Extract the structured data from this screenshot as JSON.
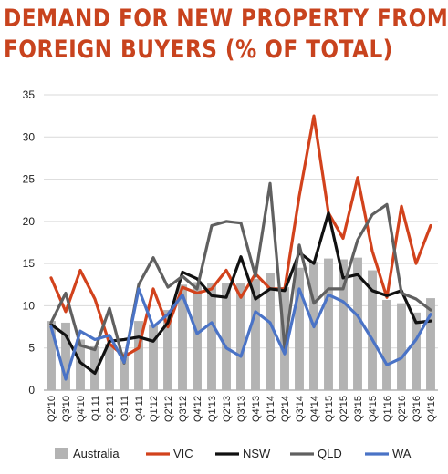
{
  "title_lines": [
    "DEMAND FOR NEW PROPERTY FROM",
    "FOREIGN BUYERS (% OF TOTAL)"
  ],
  "chart_data": {
    "type": "bar+line",
    "title": "DEMAND FOR NEW PROPERTY FROM FOREIGN BUYERS (% OF TOTAL)",
    "ylim": [
      0,
      35
    ],
    "yticks": [
      "0",
      "5",
      "10",
      "15",
      "20",
      "25",
      "30",
      "35"
    ],
    "grid": true,
    "legend_position": "bottom",
    "categories": [
      "Q2'10",
      "Q3'10",
      "Q4'10",
      "Q1'11",
      "Q2'11",
      "Q3'11",
      "Q4'11",
      "Q1'12",
      "Q2'12",
      "Q3'12",
      "Q4'12",
      "Q1'13",
      "Q2'13",
      "Q3'13",
      "Q4'13",
      "Q1'14",
      "Q2'14",
      "Q3'14",
      "Q4'14",
      "Q1'15",
      "Q2'15",
      "Q3'15",
      "Q4'15",
      "Q1'16",
      "Q2'16",
      "Q3'16",
      "Q4'16"
    ],
    "xtick_labels": [
      "Q2'10",
      "Q3'10",
      "Q4'10",
      "Q1'11",
      "Q2'11",
      "Q3'11",
      "Q4'11",
      "Q1'12",
      "Q2'12",
      "Q3'12",
      "Q4'12",
      "Q1'13",
      "Q2'13",
      "Q3'13",
      "Q4'13",
      "Q1'14",
      "Q2'14",
      "Q3'14",
      "Q4'14",
      "Q1'15",
      "Q2'15",
      "Q3'15",
      "Q4'15",
      "Q1'16",
      "Q2'16",
      "Q3'16",
      "Q4'16"
    ],
    "bars": {
      "name": "Australia",
      "color": "#b3b3b3",
      "values": [
        8.2,
        8.0,
        6.0,
        5.2,
        5.5,
        4.5,
        8.2,
        7.8,
        9.5,
        12.5,
        12.8,
        12.7,
        12.7,
        12.7,
        13.2,
        13.9,
        12.2,
        14.5,
        15.2,
        15.6,
        15.5,
        15.7,
        14.2,
        10.7,
        10.3,
        9.2,
        10.9
      ]
    },
    "series": [
      {
        "name": "VIC",
        "color": "#d2421c",
        "values": [
          13.3,
          9.3,
          14.2,
          10.8,
          5.5,
          4.0,
          5.0,
          12.0,
          7.5,
          12.2,
          11.5,
          12.0,
          14.2,
          11.0,
          13.8,
          12.0,
          12.0,
          23.0,
          32.5,
          21.0,
          18.0,
          25.2,
          16.5,
          11.0,
          21.8,
          15.0,
          19.5
        ]
      },
      {
        "name": "NSW",
        "color": "#111111",
        "values": [
          7.8,
          6.5,
          3.3,
          2.0,
          5.8,
          6.0,
          6.3,
          5.8,
          8.0,
          14.0,
          13.2,
          11.2,
          11.0,
          15.8,
          10.8,
          12.0,
          11.8,
          16.3,
          15.0,
          21.0,
          13.3,
          13.7,
          11.8,
          11.2,
          11.8,
          8.0,
          8.2
        ]
      },
      {
        "name": "QLD",
        "color": "#606060",
        "values": [
          8.0,
          11.5,
          5.3,
          4.8,
          9.7,
          3.2,
          12.5,
          15.7,
          12.2,
          13.5,
          12.0,
          19.5,
          20.0,
          19.8,
          13.5,
          24.5,
          5.0,
          17.2,
          10.3,
          12.0,
          12.0,
          17.8,
          20.8,
          22.0,
          11.5,
          10.8,
          9.5
        ]
      },
      {
        "name": "WA",
        "color": "#4a73c6",
        "values": [
          7.5,
          1.3,
          7.0,
          6.0,
          6.5,
          3.3,
          12.0,
          7.5,
          9.0,
          11.3,
          6.7,
          8.0,
          5.0,
          4.0,
          9.3,
          8.0,
          4.3,
          12.0,
          7.5,
          11.3,
          10.5,
          8.8,
          6.0,
          3.0,
          3.8,
          6.0,
          9.0
        ]
      }
    ]
  }
}
